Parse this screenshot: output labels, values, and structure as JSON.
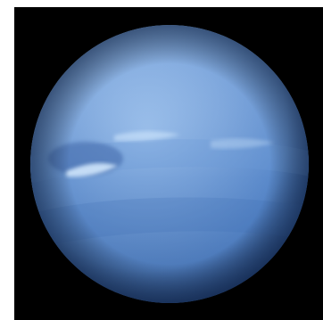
{
  "image": {
    "subject": "planet",
    "colors": {
      "background": "#000000",
      "frame": "#ffffff",
      "planet_light": "#8fb7e8",
      "planet_mid": "#5f8fd0",
      "planet_dark": "#2f5fa8",
      "limb": "#1d3f7c",
      "cloud": "#d8ecff",
      "storm": "#4e73b3"
    }
  }
}
